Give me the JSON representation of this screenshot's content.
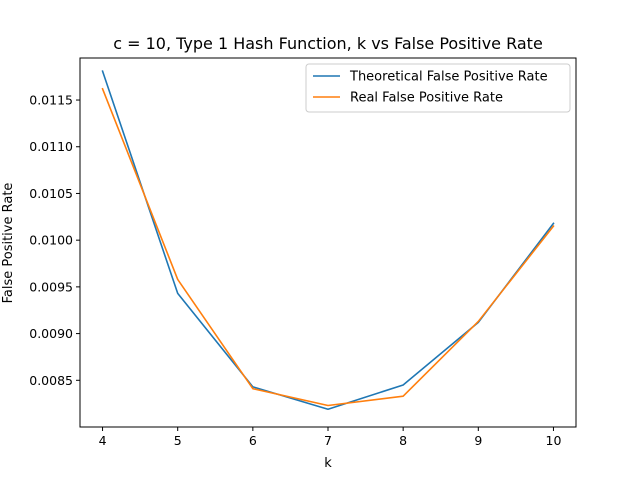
{
  "chart_data": {
    "type": "line",
    "title": "c = 10, Type 1 Hash Function, k vs False Positive Rate",
    "xlabel": "k",
    "ylabel": "False Positive Rate",
    "x": [
      4,
      5,
      6,
      7,
      8,
      9,
      10
    ],
    "x_ticks": [
      "4",
      "5",
      "6",
      "7",
      "8",
      "9",
      "10"
    ],
    "y_ticks": [
      "0.0085",
      "0.0090",
      "0.0095",
      "0.0100",
      "0.0105",
      "0.0110",
      "0.0115"
    ],
    "y_tick_values": [
      0.0085,
      0.009,
      0.0095,
      0.01,
      0.0105,
      0.011,
      0.0115
    ],
    "xlim": [
      3.7,
      10.3
    ],
    "ylim": [
      0.008,
      0.01195
    ],
    "grid": false,
    "legend_position": "top-right",
    "series": [
      {
        "name": "Theoretical False Positive Rate",
        "color": "#1f77b4",
        "values": [
          0.01181,
          0.00943,
          0.00843,
          0.00819,
          0.00845,
          0.00912,
          0.01018
        ]
      },
      {
        "name": "Real False Positive Rate",
        "color": "#ff7f0e",
        "values": [
          0.01162,
          0.00958,
          0.00841,
          0.00823,
          0.00833,
          0.00913,
          0.01015
        ]
      }
    ]
  }
}
